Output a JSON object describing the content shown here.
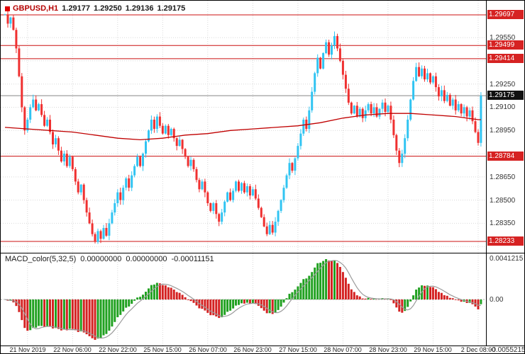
{
  "header": {
    "symbol": "GBPUSD,H1",
    "open": "1.29177",
    "high": "1.29250",
    "low": "1.29136",
    "close": "1.29175"
  },
  "macd_header": {
    "name": "MACD_color(5,32,5)",
    "value1": "0.00000000",
    "value2": "0.00000000",
    "value3": "-0.00011151"
  },
  "chart_data": {
    "type": "candlestick",
    "title": "GBPUSD,H1",
    "symbol": "GBPUSD",
    "timeframe": "H1",
    "x_labels": [
      "21 Nov 2019",
      "22 Nov 06:00",
      "22 Nov 22:00",
      "25 Nov 15:00",
      "26 Nov 07:00",
      "26 Nov 23:00",
      "27 Nov 15:00",
      "28 Nov 07:00",
      "28 Nov 23:00",
      "29 Nov 15:00",
      "2 Dec 08:00"
    ],
    "label_first_candle": 8,
    "label_step": 16,
    "closes": [
      1.297,
      1.2964,
      1.2968,
      1.296,
      1.2948,
      1.293,
      1.291,
      1.2895,
      1.2902,
      1.291,
      1.2915,
      1.2908,
      1.2912,
      1.2905,
      1.2898,
      1.2902,
      1.2894,
      1.2886,
      1.289,
      1.2882,
      1.2875,
      1.288,
      1.2872,
      1.2878,
      1.287,
      1.2862,
      1.2855,
      1.286,
      1.285,
      1.2842,
      1.2835,
      1.2828,
      1.2823,
      1.283,
      1.2825,
      1.2832,
      1.2827,
      1.2835,
      1.2842,
      1.2848,
      1.2855,
      1.285,
      1.2858,
      1.2864,
      1.2858,
      1.2866,
      1.2872,
      1.2878,
      1.2872,
      1.288,
      1.2888,
      1.2895,
      1.2902,
      1.2896,
      1.2904,
      1.2898,
      1.2893,
      1.2898,
      1.2892,
      1.2896,
      1.289,
      1.2885,
      1.2889,
      1.2883,
      1.2878,
      1.2872,
      1.2876,
      1.287,
      1.2863,
      1.2857,
      1.2862,
      1.2855,
      1.2848,
      1.2843,
      1.2848,
      1.2841,
      1.2836,
      1.2842,
      1.2849,
      1.2855,
      1.285,
      1.2856,
      1.2862,
      1.2856,
      1.2861,
      1.2855,
      1.2859,
      1.2853,
      1.2857,
      1.2851,
      1.2845,
      1.2839,
      1.2833,
      1.2828,
      1.2834,
      1.2829,
      1.2836,
      1.2843,
      1.285,
      1.2858,
      1.2866,
      1.2874,
      1.2869,
      1.2877,
      1.2885,
      1.2893,
      1.2902,
      1.2896,
      1.2908,
      1.292,
      1.2932,
      1.2942,
      1.2935,
      1.2945,
      1.2952,
      1.2944,
      1.295,
      1.2956,
      1.2948,
      1.294,
      1.2931,
      1.2922,
      1.2913,
      1.2906,
      1.2911,
      1.2904,
      1.2909,
      1.2903,
      1.2908,
      1.2912,
      1.2906,
      1.291,
      1.2904,
      1.2909,
      1.2913,
      1.2907,
      1.2911,
      1.2902,
      1.2892,
      1.2882,
      1.2874,
      1.288,
      1.289,
      1.2902,
      1.2915,
      1.2927,
      1.2936,
      1.293,
      1.2935,
      1.2928,
      1.2932,
      1.2926,
      1.293,
      1.2923,
      1.2917,
      1.2921,
      1.2914,
      1.2918,
      1.2911,
      1.2915,
      1.2908,
      1.2912,
      1.2906,
      1.291,
      1.2904,
      1.2908,
      1.2901,
      1.2894,
      1.2887,
      1.29175
    ],
    "ma_step": 8,
    "ma": [
      1.2897,
      1.2896,
      1.2895,
      1.2894,
      1.2892,
      1.289,
      1.2889,
      1.289,
      1.2892,
      1.2893,
      1.2895,
      1.2896,
      1.2897,
      1.2898,
      1.29,
      1.2903,
      1.2905,
      1.2906,
      1.2906,
      1.2905,
      1.2904,
      1.2902
    ],
    "price_axis": {
      "grid": [
        1.2955,
        1.294,
        1.2925,
        1.291,
        1.2895,
        1.288,
        1.2865,
        1.285,
        1.2835,
        1.282
      ],
      "labels": [
        {
          "p": 1.2955,
          "t": "1.29550"
        },
        {
          "p": 1.2925,
          "t": "1.29250"
        },
        {
          "p": 1.291,
          "t": "1.29100"
        },
        {
          "p": 1.2895,
          "t": "1.28950"
        },
        {
          "p": 1.2865,
          "t": "1.28650"
        },
        {
          "p": 1.285,
          "t": "1.28500"
        },
        {
          "p": 1.2835,
          "t": "1.28350"
        }
      ]
    },
    "levels": [
      {
        "p": 1.29697,
        "t": "1.29697"
      },
      {
        "p": 1.29499,
        "t": "1.29499"
      },
      {
        "p": 1.29414,
        "t": "1.29414"
      },
      {
        "p": 1.28784,
        "t": "1.28784"
      },
      {
        "p": 1.28233,
        "t": "1.28233"
      }
    ],
    "current_price": {
      "p": 1.29175,
      "t": "1.29175"
    },
    "macd": {
      "name": "MACD_color(5,32,5)",
      "fast": 5,
      "slow": 32,
      "signal": 5,
      "display_values": [
        "0.00000000",
        "0.00000000",
        "-0.00011151"
      ],
      "axis_max": "0.0041215",
      "axis_zero": "0.00",
      "axis_min": "-0.0055215"
    },
    "colors": {
      "bull": "#31c4f2",
      "bear": "#ef3030",
      "ma": "#c00000",
      "level": "#cc1111",
      "grid": "#d9d9d9",
      "current_line": "#888888",
      "macd_up": "#21a121",
      "macd_down": "#d42222",
      "macd_signal": "#9b9b9b",
      "level_label_bg": "#d62222",
      "current_label_bg": "#101010"
    }
  }
}
